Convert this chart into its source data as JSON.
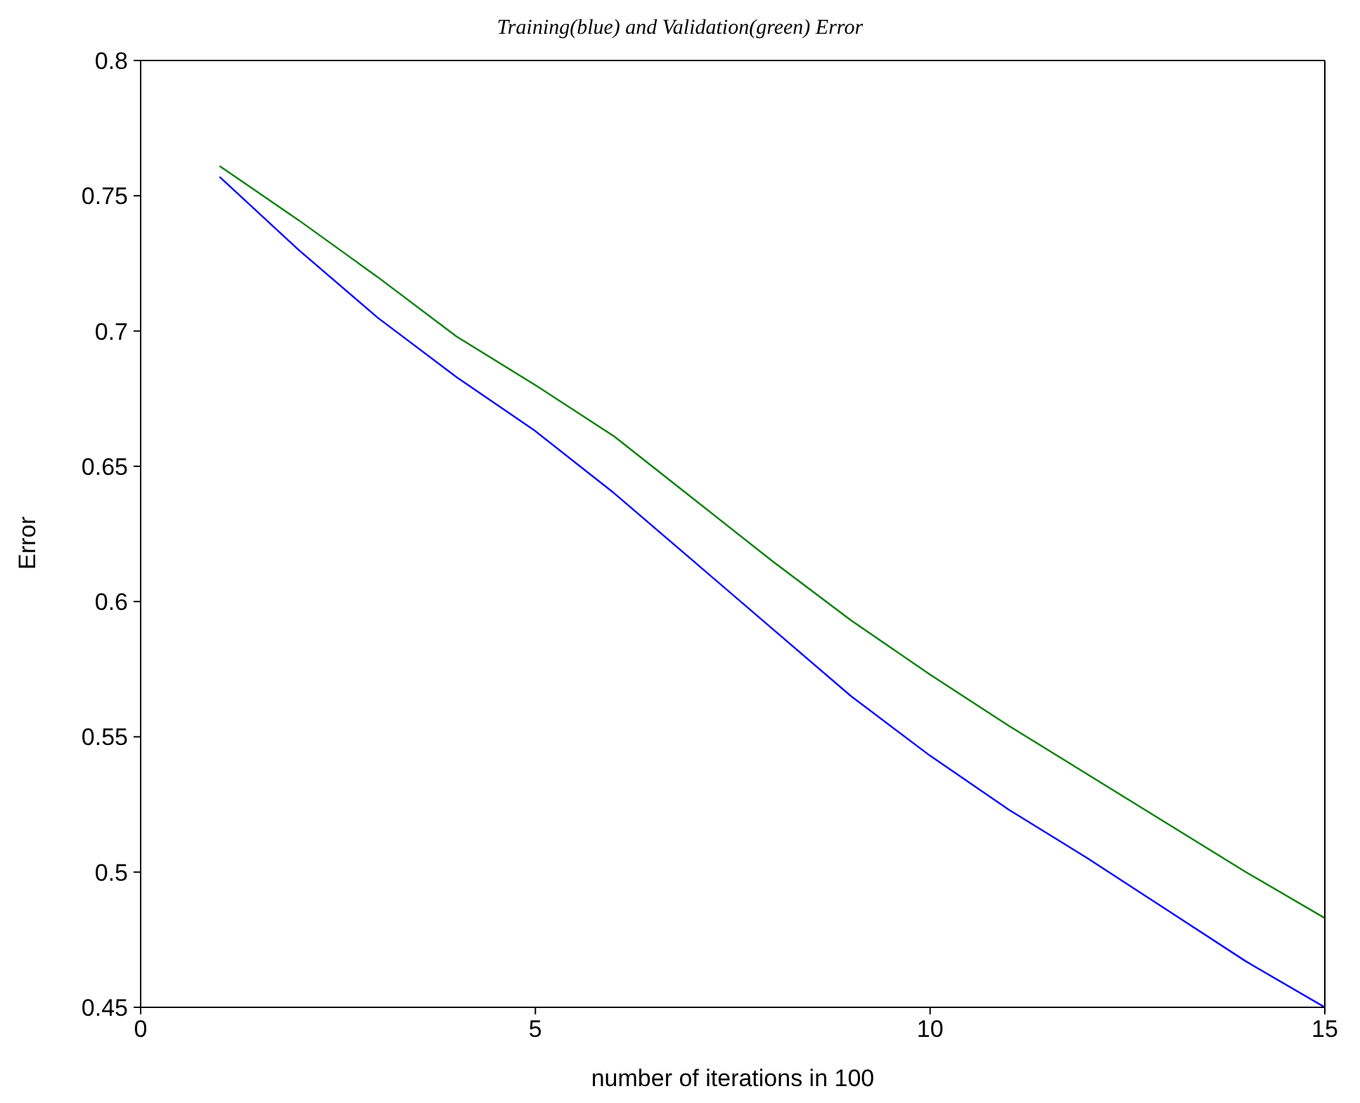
{
  "chart_data": {
    "type": "line",
    "title": "Training(blue) and Validation(green) Error",
    "xlabel": "number of iterations in 100",
    "ylabel": "Error",
    "x": [
      1,
      2,
      3,
      4,
      5,
      6,
      7,
      8,
      9,
      10,
      11,
      12,
      13,
      14,
      15
    ],
    "series": [
      {
        "color": "#0000ff",
        "values": [
          0.757,
          0.73,
          0.705,
          0.683,
          0.663,
          0.64,
          0.615,
          0.59,
          0.565,
          0.543,
          0.523,
          0.505,
          0.486,
          0.467,
          0.45
        ]
      },
      {
        "color": "#008000",
        "values": [
          0.761,
          0.741,
          0.72,
          0.698,
          0.68,
          0.661,
          0.638,
          0.615,
          0.593,
          0.573,
          0.554,
          0.536,
          0.518,
          0.5,
          0.483
        ]
      }
    ],
    "xlim": [
      0,
      15
    ],
    "xticks": [
      0,
      5,
      10,
      15
    ],
    "ylim": [
      0.45,
      0.8
    ],
    "yticks": [
      0.45,
      0.5,
      0.55,
      0.6,
      0.65,
      0.7,
      0.75,
      0.8
    ],
    "grid": false,
    "legend": false,
    "marker": "none",
    "line_style": "solid"
  }
}
